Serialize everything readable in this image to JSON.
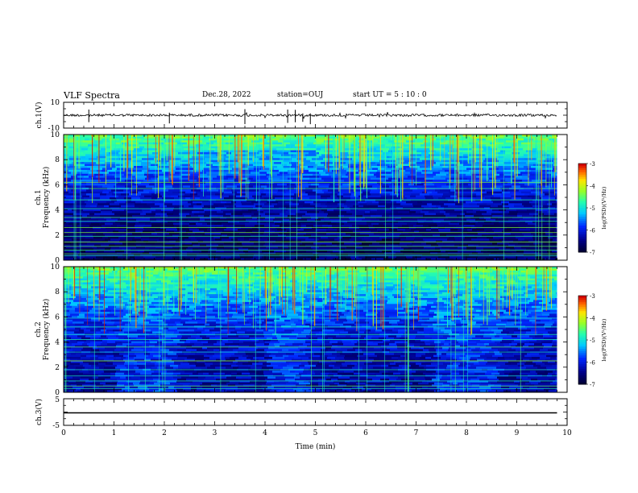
{
  "header": {
    "title": "VLF Spectra",
    "date": "Dec.28, 2022",
    "station": "station=OUJ",
    "start": "start  UT =  5 : 10 : 0"
  },
  "colors": {
    "background": "#ffffff",
    "axes": "#000000",
    "spectrogram_low": "#000040",
    "spectrogram_high": "#ff0000"
  },
  "chart_data": [
    {
      "type": "line",
      "panel": "ch1-waveform",
      "ylabel": "ch.1(V)",
      "yticks": [
        "10",
        "-10"
      ],
      "ylim": [
        -10,
        10
      ],
      "xlim": [
        0,
        10
      ],
      "baseline": 0
    },
    {
      "type": "heatmap",
      "panel": "ch1-spectrogram",
      "ylabel": "ch.1\nFrequency (kHz)",
      "yticks": [
        "0",
        "2",
        "4",
        "6",
        "8",
        "10"
      ],
      "ylim": [
        0,
        10
      ],
      "xlim": [
        0,
        10
      ],
      "colorbar": {
        "label": "log(PSD)(V²/Hz)",
        "ticks": [
          "-3",
          "-4",
          "-5",
          "-6",
          "-7"
        ],
        "range": [
          -7,
          -3
        ]
      }
    },
    {
      "type": "heatmap",
      "panel": "ch2-spectrogram",
      "ylabel": "ch.2\nFrequency (kHz)",
      "yticks": [
        "0",
        "2",
        "4",
        "6",
        "8",
        "10"
      ],
      "ylim": [
        0,
        10
      ],
      "xlim": [
        0,
        10
      ],
      "colorbar": {
        "label": "log(PSD)(V²/Hz)",
        "ticks": [
          "-3",
          "-4",
          "-5",
          "-6",
          "-7"
        ],
        "range": [
          -7,
          -3
        ]
      }
    },
    {
      "type": "line",
      "panel": "ch3-waveform",
      "ylabel": "ch.3(V)",
      "yticks": [
        "5",
        "-5"
      ],
      "ylim": [
        -5,
        5
      ],
      "xlim": [
        0,
        10
      ],
      "baseline": 0,
      "xlabel": "Time (min)",
      "xticks": [
        "0",
        "1",
        "2",
        "3",
        "4",
        "5",
        "6",
        "7",
        "8",
        "9",
        "10"
      ]
    }
  ]
}
